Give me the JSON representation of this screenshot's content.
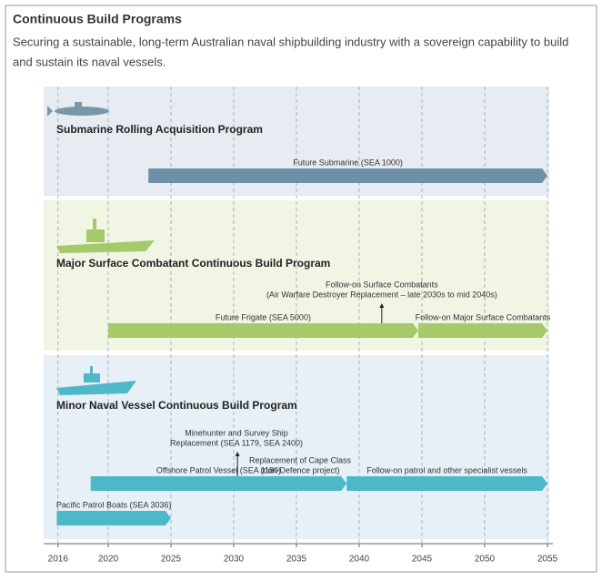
{
  "chart_data": {
    "type": "timeline",
    "title": "Continuous Build Programs",
    "subtitle": [
      "Securing a sustainable, long-term Australian naval shipbuilding industry with a sovereign capability to build",
      "and sustain its naval vessels."
    ],
    "xlim": [
      2015,
      2055
    ],
    "xticks": [
      2016,
      2020,
      2025,
      2030,
      2035,
      2040,
      2045,
      2050,
      2055
    ],
    "grid": true,
    "groups": [
      {
        "name": "Submarine Rolling Acquisition Program",
        "color": "#6f8fa8",
        "background": "#e6ecf2",
        "bars": [
          {
            "label": "Future Submarine (SEA 1000)",
            "start": 2023.2,
            "end": 2055
          }
        ],
        "annotations": []
      },
      {
        "name": "Major Surface Combatant Continuous Build Program",
        "color": "#a6c96a",
        "background": "#f0f5e4",
        "bars": [
          {
            "label": "Future Frigate (SEA 5000)",
            "start": 2020,
            "end": 2044.7
          },
          {
            "label": "Follow-on Major Surface Combatants",
            "start": 2044.7,
            "end": 2055
          }
        ],
        "annotations": [
          {
            "lines": [
              "Follow-on Surface Combatants",
              "(Air Warfare Destroyer Replacement – late 2030s to mid 2040s)"
            ],
            "at": 2041.8
          }
        ]
      },
      {
        "name": "Minor Naval Vessel Continuous Build Program",
        "color": "#4db8c8",
        "background": "#e6f0f6",
        "bars": [
          {
            "label": "Offshore Patrol Vessel (SEA 1180)",
            "start": 2018.6,
            "end": 2039
          },
          {
            "label": "Follow-on patrol and other specialist vessels",
            "start": 2039,
            "end": 2055
          },
          {
            "label": "Pacific Patrol Boats (SEA 3036)",
            "start": 2015.9,
            "end": 2025
          }
        ],
        "annotations": [
          {
            "lines": [
              "Minehunter and Survey Ship",
              "Replacement (SEA 1179, SEA 2400)"
            ],
            "at": 2030.3
          },
          {
            "lines": [
              "Replacement of Cape Class",
              "(non-Defence project)"
            ],
            "at": null
          }
        ]
      }
    ]
  }
}
